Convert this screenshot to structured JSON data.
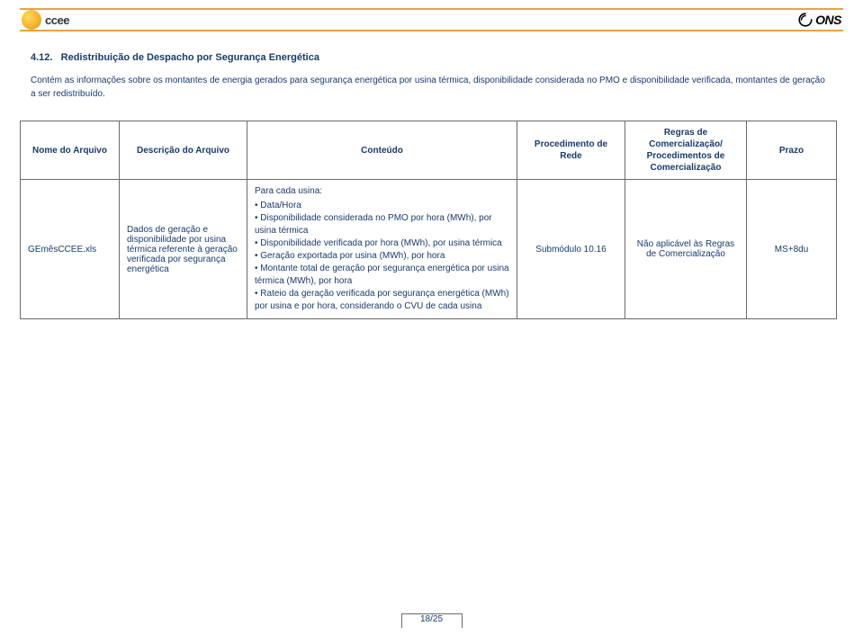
{
  "logos": {
    "ccee_text": "ccee",
    "ons_text": "ONS"
  },
  "section": {
    "number": "4.12.",
    "title": "Redistribuição de Despacho por Segurança Energética"
  },
  "intro": "Contém as informações sobre os montantes de energia gerados para segurança energética por usina térmica, disponibilidade considerada no PMO e disponibilidade verificada, montantes de geração a ser redistribuído.",
  "table": {
    "headers": {
      "h1": "Nome do Arquivo",
      "h2": "Descrição do Arquivo",
      "h3": "Conteúdo",
      "h4": "Procedimento de Rede",
      "h5": "Regras de Comercialização/ Procedimentos de Comercialização",
      "h6": "Prazo"
    },
    "row": {
      "nome": "GEmêsCCEE.xls",
      "descricao": "Dados de geração e disponibilidade por usina térmica referente à geração verificada por segurança energética",
      "conteudo_lead": "Para cada usina:",
      "conteudo_items": [
        "Data/Hora",
        "Disponibilidade considerada no PMO por hora (MWh), por usina térmica",
        "Disponibilidade verificada por hora (MWh), por usina térmica",
        "Geração exportada por usina (MWh), por hora",
        "Montante total de geração por segurança energética por usina térmica (MWh), por hora",
        "Rateio da geração verificada por segurança energética (MWh) por usina e por hora, considerando o CVU de cada usina"
      ],
      "procedimento": "Submódulo 10.16",
      "regras": "Não aplicável às Regras de Comercialização",
      "prazo": "MS+8du"
    }
  },
  "page": "18/25",
  "colors": {
    "rule": "#e8a43a",
    "text": "#1a3a6e",
    "border": "#6a6a6a",
    "background": "#ffffff"
  }
}
